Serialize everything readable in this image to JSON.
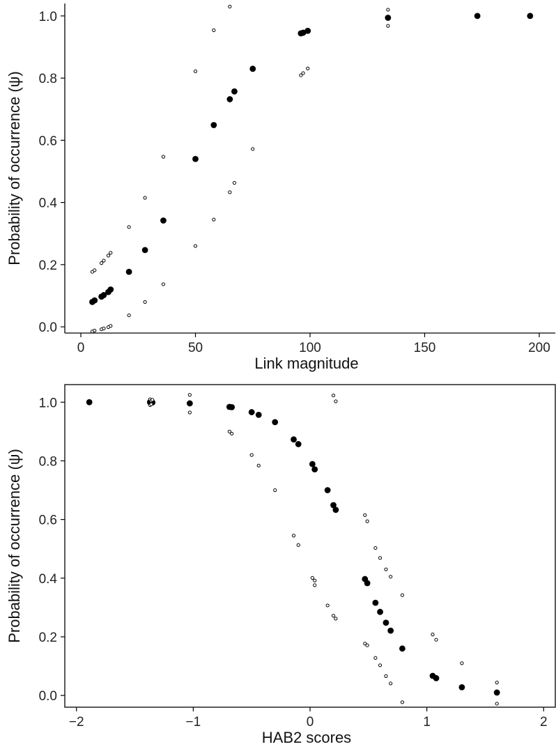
{
  "chart_data": [
    {
      "type": "scatter",
      "xlabel": "Link magnitude",
      "ylabel": "Probability of occurrence (ψ)",
      "xlim": [
        -7,
        207
      ],
      "ylim": [
        -0.02,
        1.04
      ],
      "xticks": [
        0,
        50,
        100,
        150,
        200
      ],
      "yticks": [
        0.0,
        0.2,
        0.4,
        0.6,
        0.8,
        1.0
      ],
      "xtick_labels": [
        "0",
        "50",
        "100",
        "150",
        "200"
      ],
      "ytick_labels": [
        "0.0",
        "0.2",
        "0.4",
        "0.6",
        "0.8",
        "1.0"
      ],
      "series": [
        {
          "marker": "filled",
          "points": [
            [
              5,
              0.08
            ],
            [
              6,
              0.085
            ],
            [
              9,
              0.097
            ],
            [
              10,
              0.102
            ],
            [
              12,
              0.112
            ],
            [
              13,
              0.12
            ],
            [
              21,
              0.177
            ],
            [
              28,
              0.247
            ],
            [
              36,
              0.342
            ],
            [
              50,
              0.54
            ],
            [
              58,
              0.649
            ],
            [
              65,
              0.732
            ],
            [
              67,
              0.757
            ],
            [
              75,
              0.83
            ],
            [
              96,
              0.944
            ],
            [
              97,
              0.946
            ],
            [
              99,
              0.952
            ],
            [
              134,
              0.994
            ],
            [
              173,
              1.0
            ],
            [
              196,
              1.0
            ]
          ]
        },
        {
          "marker": "open",
          "points": [
            [
              5,
              -0.015
            ],
            [
              6,
              -0.012
            ],
            [
              9,
              -0.008
            ],
            [
              10,
              -0.005
            ],
            [
              12,
              -0.001
            ],
            [
              13,
              0.003
            ],
            [
              21,
              0.037
            ],
            [
              28,
              0.08
            ],
            [
              36,
              0.137
            ],
            [
              50,
              0.26
            ],
            [
              58,
              0.345
            ],
            [
              65,
              0.433
            ],
            [
              67,
              0.463
            ],
            [
              75,
              0.572
            ],
            [
              96,
              0.809
            ],
            [
              97,
              0.816
            ],
            [
              99,
              0.831
            ],
            [
              134,
              0.968
            ],
            [
              5,
              0.177
            ],
            [
              6,
              0.182
            ],
            [
              9,
              0.205
            ],
            [
              10,
              0.213
            ],
            [
              12,
              0.229
            ],
            [
              13,
              0.238
            ],
            [
              21,
              0.321
            ],
            [
              28,
              0.415
            ],
            [
              36,
              0.547
            ],
            [
              50,
              0.822
            ],
            [
              58,
              0.954
            ],
            [
              65,
              1.03
            ],
            [
              134,
              1.02
            ]
          ]
        }
      ]
    },
    {
      "type": "scatter",
      "xlabel": "HAB2 scores",
      "ylabel": "Probability of occurrence (ψ)",
      "xlim": [
        -2.1,
        2.1
      ],
      "ylim": [
        -0.04,
        1.06
      ],
      "xticks": [
        -2,
        -1,
        0,
        1,
        2
      ],
      "yticks": [
        0.0,
        0.2,
        0.4,
        0.6,
        0.8,
        1.0
      ],
      "xtick_labels": [
        "−2",
        "−1",
        "0",
        "1",
        "2"
      ],
      "ytick_labels": [
        "0.0",
        "0.2",
        "0.4",
        "0.6",
        "0.8",
        "1.0"
      ],
      "series": [
        {
          "marker": "filled",
          "points": [
            [
              -1.89,
              1.0
            ],
            [
              -1.37,
              1.0
            ],
            [
              -1.36,
              0.999
            ],
            [
              -1.35,
              0.999
            ],
            [
              -1.03,
              0.996
            ],
            [
              -0.69,
              0.984
            ],
            [
              -0.67,
              0.983
            ],
            [
              -0.5,
              0.966
            ],
            [
              -0.44,
              0.957
            ],
            [
              -0.3,
              0.932
            ],
            [
              -0.14,
              0.873
            ],
            [
              -0.1,
              0.857
            ],
            [
              0.02,
              0.789
            ],
            [
              0.04,
              0.771
            ],
            [
              0.15,
              0.7
            ],
            [
              0.2,
              0.649
            ],
            [
              0.22,
              0.633
            ],
            [
              0.47,
              0.397
            ],
            [
              0.49,
              0.383
            ],
            [
              0.56,
              0.316
            ],
            [
              0.6,
              0.285
            ],
            [
              0.65,
              0.248
            ],
            [
              0.69,
              0.221
            ],
            [
              0.79,
              0.16
            ],
            [
              1.05,
              0.067
            ],
            [
              1.08,
              0.059
            ],
            [
              1.3,
              0.028
            ],
            [
              1.6,
              0.01
            ]
          ]
        },
        {
          "marker": "open",
          "points": [
            [
              -1.37,
              1.01
            ],
            [
              -1.36,
              1.005
            ],
            [
              -1.35,
              1.008
            ],
            [
              -1.37,
              0.99
            ],
            [
              -1.36,
              0.993
            ],
            [
              -1.03,
              1.025
            ],
            [
              -1.03,
              0.965
            ],
            [
              -0.69,
              0.9
            ],
            [
              -0.67,
              0.893
            ],
            [
              -0.5,
              0.82
            ],
            [
              -0.44,
              0.784
            ],
            [
              -0.3,
              0.7
            ],
            [
              -0.14,
              0.545
            ],
            [
              -0.1,
              0.513
            ],
            [
              0.02,
              0.401
            ],
            [
              0.04,
              0.392
            ],
            [
              0.04,
              0.376
            ],
            [
              0.15,
              0.307
            ],
            [
              0.2,
              0.272
            ],
            [
              0.22,
              0.262
            ],
            [
              0.2,
              1.023
            ],
            [
              0.22,
              1.003
            ],
            [
              0.47,
              0.615
            ],
            [
              0.49,
              0.594
            ],
            [
              0.47,
              0.177
            ],
            [
              0.49,
              0.171
            ],
            [
              0.56,
              0.503
            ],
            [
              0.6,
              0.469
            ],
            [
              0.65,
              0.43
            ],
            [
              0.69,
              0.405
            ],
            [
              0.56,
              0.128
            ],
            [
              0.6,
              0.103
            ],
            [
              0.65,
              0.066
            ],
            [
              0.69,
              0.041
            ],
            [
              0.79,
              0.342
            ],
            [
              0.79,
              -0.023
            ],
            [
              1.05,
              0.208
            ],
            [
              1.08,
              0.19
            ],
            [
              1.3,
              0.11
            ],
            [
              1.6,
              0.044
            ],
            [
              1.6,
              -0.028
            ]
          ]
        }
      ]
    }
  ]
}
